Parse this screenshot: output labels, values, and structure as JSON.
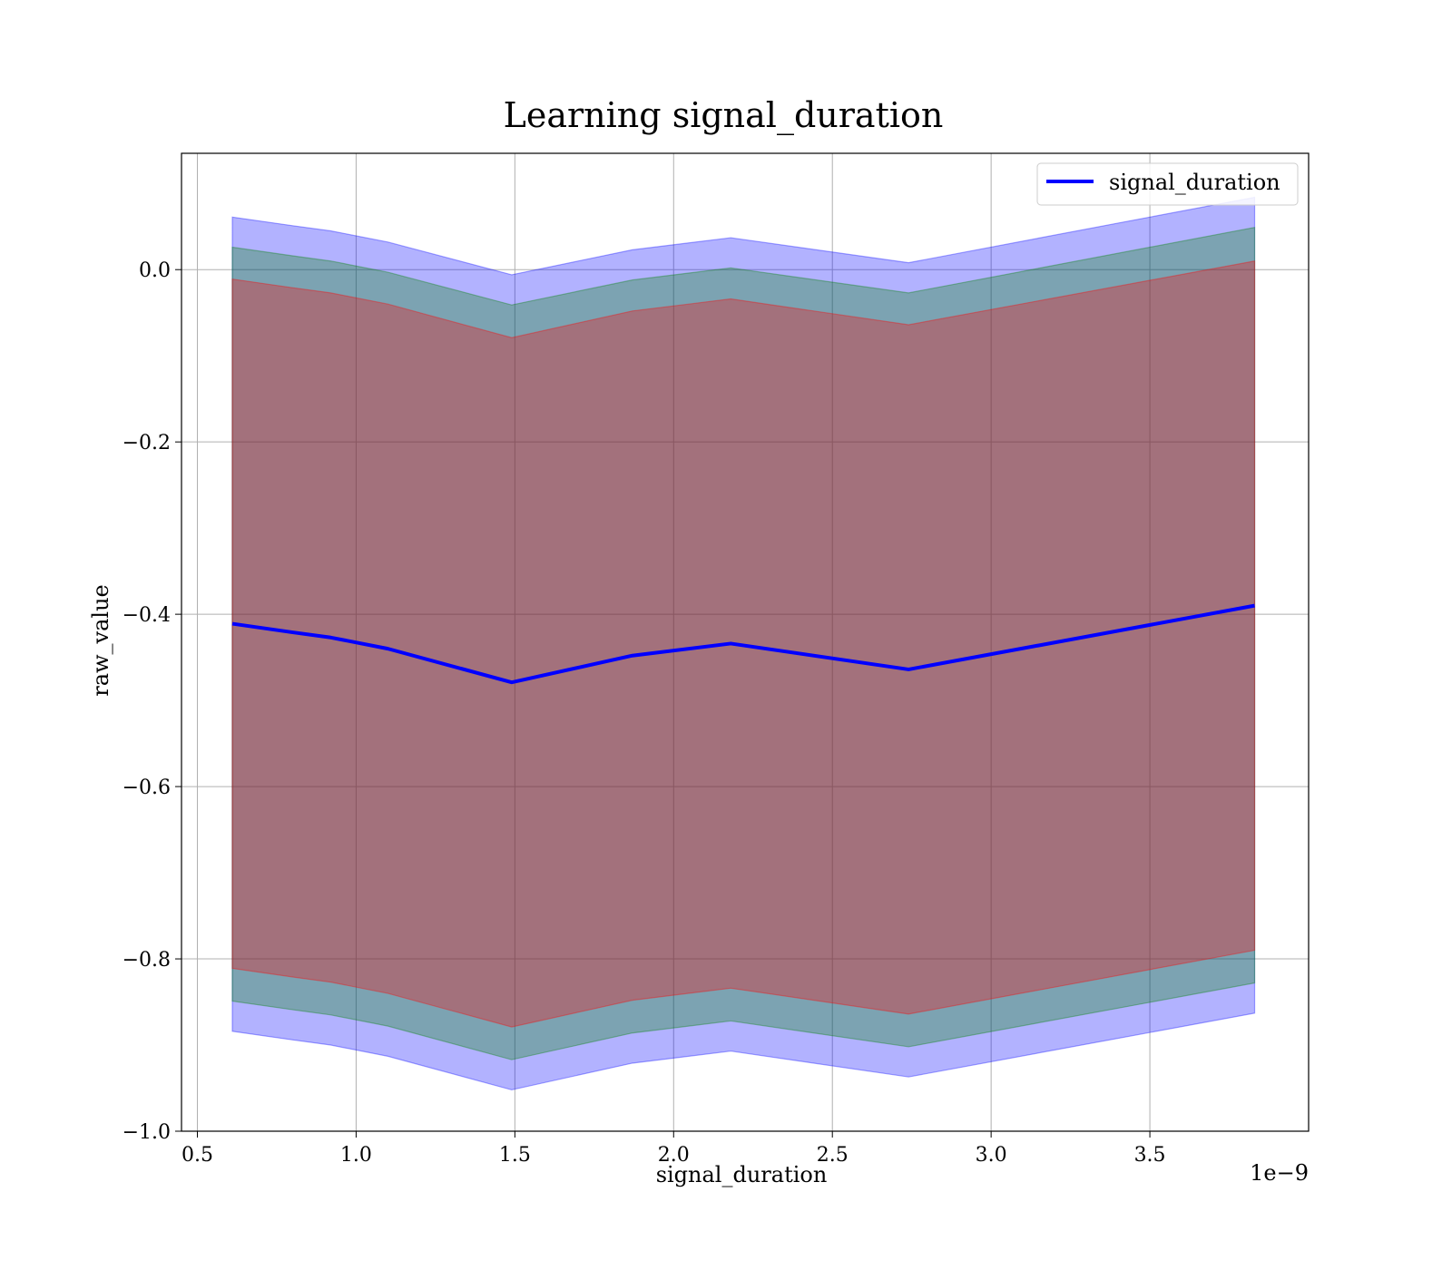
{
  "chart_data": {
    "type": "area",
    "title": "Learning signal_duration",
    "xlabel": "signal_duration",
    "ylabel": "raw_value",
    "x_offset_text": "1e−9",
    "xlim": [
      0.45,
      4.0
    ],
    "ylim": [
      -1.0,
      0.135
    ],
    "x_ticks": [
      0.5,
      1.0,
      1.5,
      2.0,
      2.5,
      3.0,
      3.5
    ],
    "x_tick_labels": [
      "0.5",
      "1.0",
      "1.5",
      "2.0",
      "2.5",
      "3.0",
      "3.5"
    ],
    "y_ticks": [
      0.0,
      -0.2,
      -0.4,
      -0.6,
      -0.8,
      -1.0
    ],
    "y_tick_labels": [
      "0.0",
      "−0.2",
      "−0.4",
      "−0.6",
      "−0.8",
      "−1.0"
    ],
    "grid": true,
    "legend_position": "top-right",
    "x": [
      0.61,
      0.8,
      0.92,
      1.1,
      1.49,
      1.87,
      2.18,
      2.74,
      3.83
    ],
    "series": [
      {
        "name": "signal_duration",
        "color": "#0000ff",
        "values": [
          -0.411,
          -0.421,
          -0.427,
          -0.44,
          -0.479,
          -0.448,
          -0.434,
          -0.464,
          -0.39
        ]
      }
    ],
    "bands": [
      {
        "color": "#0000ff",
        "opacity": 0.3,
        "upper": [
          0.061,
          0.051,
          0.045,
          0.032,
          -0.006,
          0.023,
          0.037,
          0.008,
          0.084
        ],
        "lower": [
          -0.884,
          -0.894,
          -0.9,
          -0.913,
          -0.952,
          -0.921,
          -0.907,
          -0.937,
          -0.863
        ]
      },
      {
        "color": "#008000",
        "opacity": 0.3,
        "upper": [
          0.026,
          0.016,
          0.01,
          -0.003,
          -0.041,
          -0.012,
          0.002,
          -0.027,
          0.049
        ],
        "lower": [
          -0.849,
          -0.859,
          -0.865,
          -0.878,
          -0.917,
          -0.886,
          -0.872,
          -0.902,
          -0.828
        ]
      },
      {
        "color": "#ff0000",
        "opacity": 0.3,
        "upper": [
          -0.011,
          -0.021,
          -0.027,
          -0.04,
          -0.079,
          -0.048,
          -0.034,
          -0.064,
          0.01
        ],
        "lower": [
          -0.811,
          -0.821,
          -0.827,
          -0.84,
          -0.879,
          -0.848,
          -0.834,
          -0.864,
          -0.79
        ]
      }
    ]
  }
}
